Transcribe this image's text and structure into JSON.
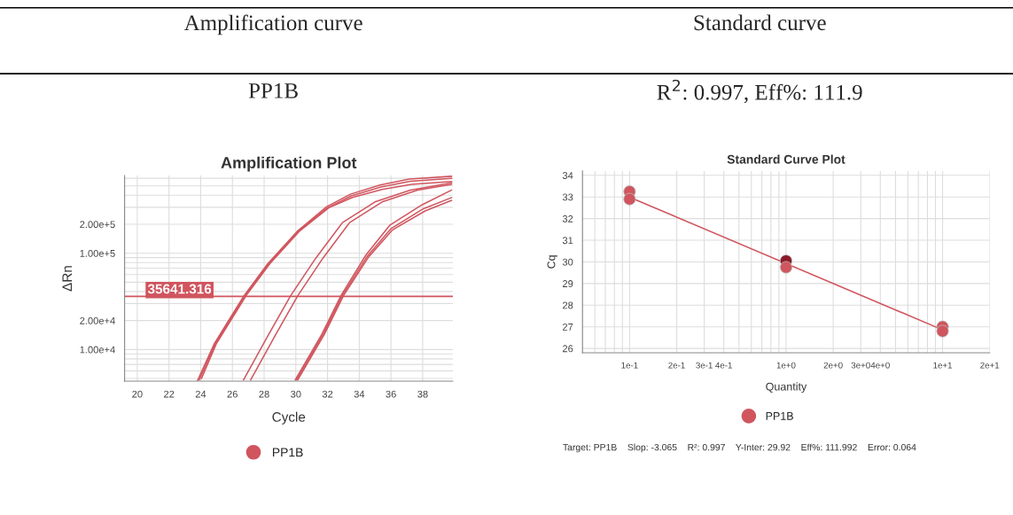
{
  "chart_data": [
    {
      "type": "line",
      "title": "Amplification Plot",
      "xlabel": "Cycle",
      "ylabel": "ΔRn",
      "log": "y",
      "grid": true,
      "legend": "bottom",
      "marker": "none",
      "line_style": "solid",
      "annotations": [
        "Amplification curve",
        "PP1B"
      ],
      "xlim": [
        19.2,
        39.9
      ],
      "xticks": [
        20,
        22,
        24,
        26,
        28,
        30,
        32,
        34,
        36,
        38
      ],
      "ylim": [
        4700,
        640000
      ],
      "yticks": [
        {
          "value": 10000,
          "label": "1.00e+4"
        },
        {
          "value": 20000,
          "label": "2.00e+4"
        },
        {
          "value": 100000,
          "label": "1.00e+5"
        },
        {
          "value": 200000,
          "label": "2.00e+5"
        }
      ],
      "ref_lines": [
        {
          "axis": "y",
          "value": 35641.316,
          "label": "35641.316",
          "color": "#d0555e"
        }
      ],
      "series": [
        {
          "name": "PP1B",
          "color": "#d0555e",
          "x": [
            23.91,
            24.93,
            26.8,
            28.29,
            30.15,
            32.01,
            33.5,
            35.36,
            37.22,
            39.83
          ],
          "values": [
            4830,
            11600,
            36400,
            77800,
            169000,
            297000,
            394000,
            486000,
            560000,
            600000
          ]
        },
        {
          "color": "#d0555e",
          "x": [
            24.05,
            25.0,
            26.87,
            28.36,
            30.22,
            32.08,
            33.57,
            35.43,
            37.29,
            39.83
          ],
          "values": [
            5000,
            11600,
            36400,
            77800,
            169000,
            297000,
            380000,
            460000,
            520000,
            555000
          ]
        },
        {
          "color": "#d0555e",
          "x": [
            23.8,
            24.87,
            26.74,
            28.23,
            30.09,
            31.95,
            33.44,
            35.3,
            37.16,
            39.83
          ],
          "values": [
            4750,
            11600,
            36400,
            77800,
            169000,
            305000,
            410000,
            510000,
            590000,
            630000
          ]
        },
        {
          "color": "#d0555e",
          "x": [
            26.7,
            28.29,
            29.68,
            31.27,
            32.94,
            34.99,
            37.22,
            39.83
          ],
          "values": [
            4830,
            14400,
            36400,
            89500,
            208000,
            341000,
            453000,
            540000
          ]
        },
        {
          "color": "#d0555e",
          "x": [
            27.15,
            28.74,
            30.13,
            31.72,
            33.39,
            35.44,
            37.67,
            39.83
          ],
          "values": [
            4830,
            14400,
            36400,
            89500,
            208000,
            341000,
            453000,
            520000
          ]
        },
        {
          "color": "#d0555e",
          "x": [
            29.96,
            31.64,
            32.85,
            34.43,
            35.92,
            37.97,
            39.83
          ],
          "values": [
            4830,
            14400,
            36400,
            96200,
            195000,
            319000,
            453000
          ]
        },
        {
          "color": "#d0555e",
          "x": [
            30.04,
            31.72,
            32.93,
            34.51,
            36.0,
            38.05,
            39.83
          ],
          "values": [
            4830,
            14400,
            36400,
            93000,
            180000,
            290000,
            379000
          ]
        },
        {
          "color": "#d0555e",
          "x": [
            30.12,
            31.8,
            33.01,
            34.6,
            36.1,
            38.15,
            39.83
          ],
          "values": [
            4830,
            14400,
            36400,
            92000,
            175000,
            275000,
            354000
          ]
        }
      ]
    },
    {
      "type": "scatter",
      "title": "Standard Curve Plot",
      "xlabel": "Quantity",
      "ylabel": "Cq",
      "log": "x",
      "grid": true,
      "legend": "bottom",
      "annotations": [
        "Standard curve",
        "R$^{2}$: 0.997, Eff%: 111.9",
        "Target: PP1B    Slop: -3.065    R²: 0.997    Y-Inter: 29.92    Eff%: 111.992    Error: 0.064"
      ],
      "xlim": [
        0.05,
        20
      ],
      "xticks": [
        {
          "value": 0.1,
          "label": "1e-1"
        },
        {
          "value": 0.2,
          "label": "2e-1"
        },
        {
          "value": 0.3,
          "label": "3e-1"
        },
        {
          "value": 0.4,
          "label": "4e-1"
        },
        {
          "value": 1,
          "label": "1e+0"
        },
        {
          "value": 2,
          "label": "2e+0"
        },
        {
          "value": 3,
          "label": "3e+0"
        },
        {
          "value": 4,
          "label": "4e+0"
        },
        {
          "value": 10,
          "label": "1e+1"
        },
        {
          "value": 20,
          "label": "2e+1"
        }
      ],
      "ylim": [
        25.8,
        34.2
      ],
      "yticks": [
        26,
        27,
        28,
        29,
        30,
        31,
        32,
        33,
        34
      ],
      "series": [
        {
          "type": "line",
          "color": "#d0555e",
          "x": [
            0.1,
            10
          ],
          "values": [
            32.99,
            26.86
          ]
        },
        {
          "name": "PP1B",
          "type": "scatter",
          "marker": "circle",
          "x": [
            0.1,
            0.1,
            1,
            1,
            10,
            10
          ],
          "values": [
            33.25,
            32.9,
            30.05,
            29.75,
            27.0,
            26.8
          ],
          "colors": [
            "#d0555e",
            "#d0555e",
            "#8b1a2a",
            "#d0555e",
            "#d0555e",
            "#d0555e"
          ]
        }
      ]
    }
  ]
}
